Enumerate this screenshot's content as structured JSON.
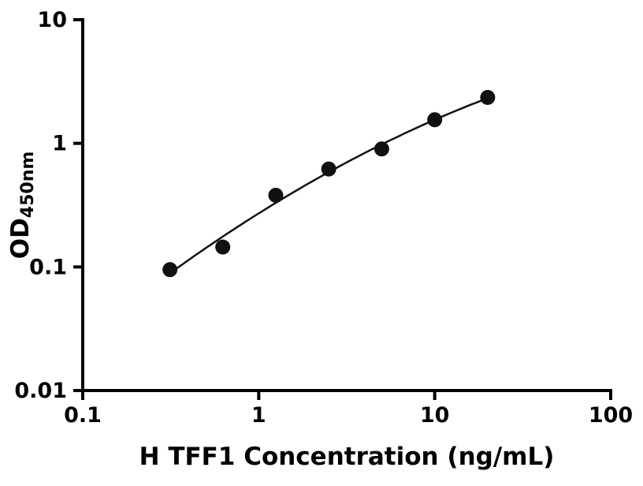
{
  "chart_data": {
    "type": "scatter",
    "title": "",
    "xlabel": "H TFF1 Concentration (ng/mL)",
    "ylabel_main": "OD",
    "ylabel_sub": "450nm",
    "x": [
      0.313,
      0.625,
      1.25,
      2.5,
      5,
      10,
      20
    ],
    "y": [
      0.095,
      0.145,
      0.38,
      0.62,
      0.9,
      1.55,
      2.35
    ],
    "xscale": "log",
    "yscale": "log",
    "xlim": [
      0.1,
      100
    ],
    "ylim": [
      0.01,
      10
    ],
    "x_ticks": [
      0.1,
      1,
      10,
      100
    ],
    "x_tick_labels": [
      "0.1",
      "1",
      "10",
      "100"
    ],
    "y_ticks": [
      0.01,
      0.1,
      1,
      10
    ],
    "y_tick_labels": [
      "0.01",
      "0.1",
      "1",
      "10"
    ],
    "grid": false,
    "legend": "none",
    "marker_shape": "filled-circle",
    "marker_color": "#111111",
    "curve_color": "#111111",
    "axis_color": "#000000",
    "fit": "smooth standard-curve fit through points"
  }
}
